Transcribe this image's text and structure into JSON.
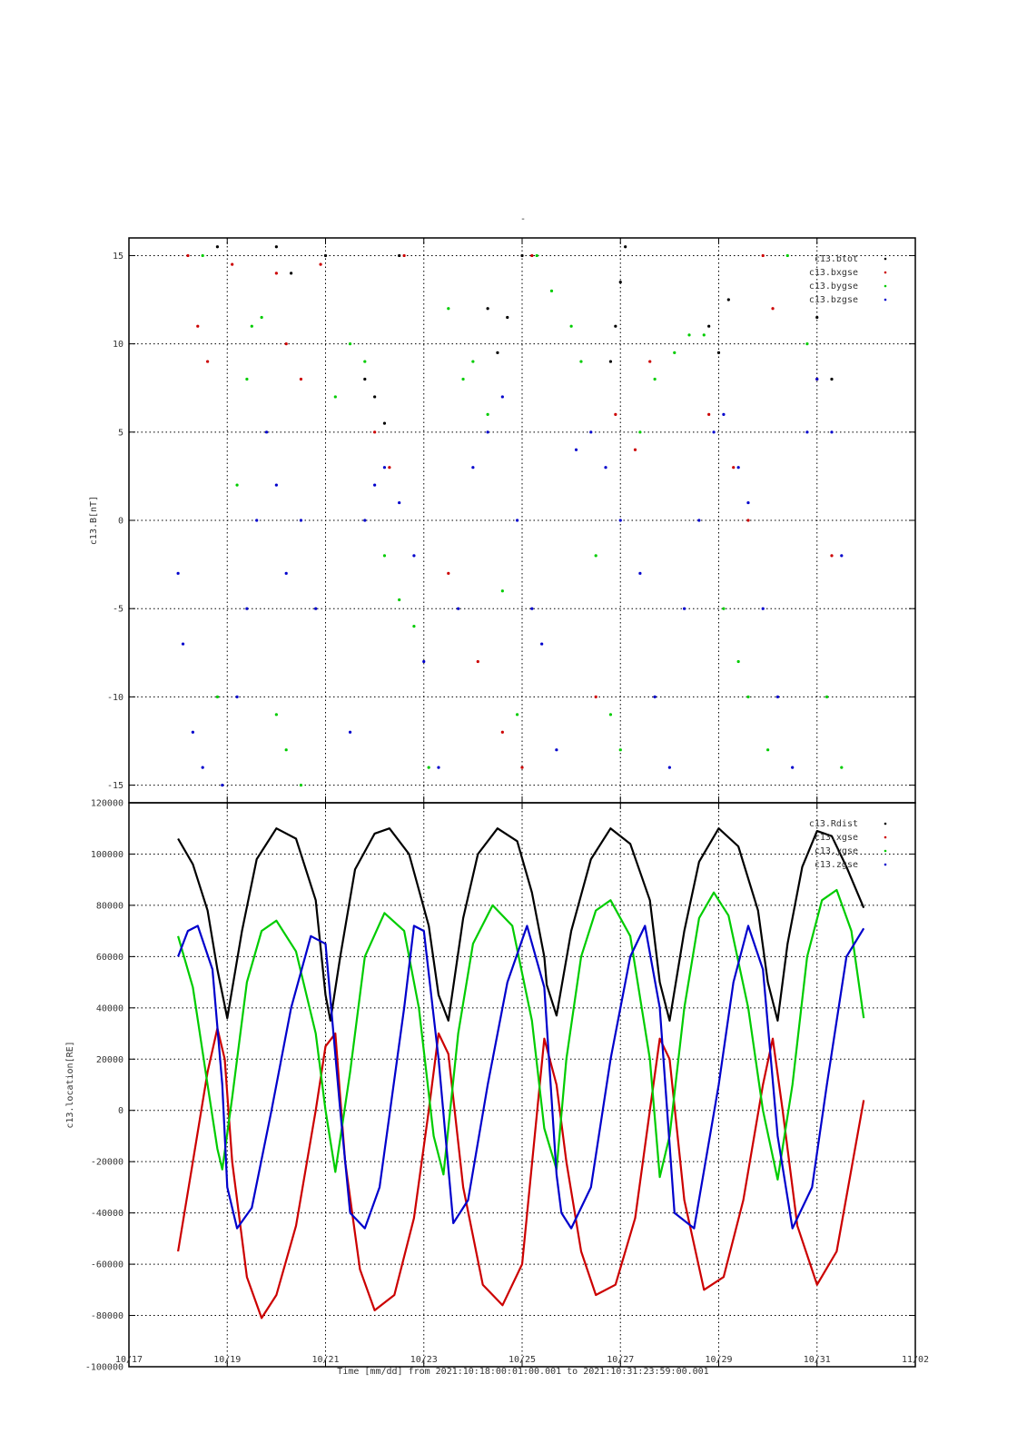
{
  "title": "-",
  "xlabel": "Time [mm/dd]  from 2021:10:18:00:01:00.001  to  2021:10:31:23:59:00.001",
  "colors": {
    "black": "#000000",
    "red": "#cc0000",
    "green": "#00cc00",
    "blue": "#0000cc"
  },
  "chart_data": [
    {
      "type": "scatter",
      "ylabel": "c13.B[nT]",
      "ylim": [
        -16,
        16
      ],
      "yticks": [
        -15,
        -10,
        -5,
        0,
        5,
        10,
        15
      ],
      "ytick_labels": [
        "-15",
        "-10",
        "-5",
        "0",
        "5",
        "10",
        "15"
      ],
      "grid": true,
      "legend_placement": "top-right",
      "legend": [
        "c13.btot",
        "c13.bxgse",
        "c13.bygse",
        "c13.bzgse"
      ],
      "series": [
        {
          "name": "c13.btot",
          "color": "#000000",
          "x": [
            18.8,
            20.0,
            20.3,
            21.0,
            21.8,
            22.0,
            22.2,
            22.5,
            24.3,
            24.5,
            24.7,
            25.0,
            26.8,
            26.9,
            27.0,
            27.1,
            28.8,
            29.0,
            29.2,
            31.0,
            31.3
          ],
          "y": [
            15.5,
            15.5,
            14.0,
            15.0,
            8.0,
            7.0,
            5.5,
            15.0,
            12.0,
            9.5,
            11.5,
            15.0,
            9.0,
            11.0,
            13.5,
            15.5,
            11.0,
            9.5,
            12.5,
            11.5,
            8.0
          ]
        },
        {
          "name": "c13.bxgse",
          "color": "#cc0000",
          "x": [
            18.2,
            18.4,
            18.6,
            19.1,
            20.0,
            20.2,
            20.5,
            20.9,
            22.0,
            22.3,
            22.6,
            23.5,
            24.1,
            24.6,
            25.0,
            25.2,
            26.5,
            26.9,
            27.3,
            27.6,
            28.8,
            29.3,
            29.6,
            29.9,
            30.1,
            31.0,
            31.3
          ],
          "y": [
            15.0,
            11.0,
            9.0,
            14.5,
            14.0,
            10.0,
            8.0,
            14.5,
            5.0,
            3.0,
            15.0,
            -3.0,
            -8.0,
            -12.0,
            -14.0,
            15.0,
            -10.0,
            6.0,
            4.0,
            9.0,
            6.0,
            3.0,
            0.0,
            15.0,
            12.0,
            8.0,
            -2.0
          ]
        },
        {
          "name": "c13.bygse",
          "color": "#00cc00",
          "x": [
            18.5,
            18.8,
            19.2,
            19.4,
            19.5,
            19.7,
            20.0,
            20.2,
            20.5,
            21.2,
            21.5,
            21.8,
            22.2,
            22.5,
            22.8,
            23.1,
            23.5,
            23.8,
            24.0,
            24.3,
            24.6,
            24.9,
            25.3,
            25.6,
            26.0,
            26.2,
            26.5,
            26.8,
            27.0,
            27.4,
            27.7,
            28.1,
            28.4,
            28.7,
            29.1,
            29.4,
            29.6,
            30.0,
            30.4,
            30.8,
            31.2,
            31.5
          ],
          "y": [
            15.0,
            -10.0,
            2.0,
            8.0,
            11.0,
            11.5,
            -11.0,
            -13.0,
            -15.0,
            7.0,
            10.0,
            9.0,
            -2.0,
            -4.5,
            -6.0,
            -14.0,
            12.0,
            8.0,
            9.0,
            6.0,
            -4.0,
            -11.0,
            15.0,
            13.0,
            11.0,
            9.0,
            -2.0,
            -11.0,
            -13.0,
            5.0,
            8.0,
            9.5,
            10.5,
            10.5,
            -5.0,
            -8.0,
            -10.0,
            -13.0,
            15.0,
            10.0,
            -10.0,
            -14.0
          ]
        },
        {
          "name": "c13.bzgse",
          "color": "#0000cc",
          "x": [
            18.0,
            18.1,
            18.3,
            18.5,
            18.9,
            19.2,
            19.4,
            19.6,
            19.8,
            20.0,
            20.2,
            20.5,
            20.8,
            21.5,
            21.8,
            22.0,
            22.2,
            22.5,
            22.8,
            23.0,
            23.3,
            23.7,
            24.0,
            24.3,
            24.6,
            24.9,
            25.2,
            25.4,
            25.7,
            26.1,
            26.4,
            26.7,
            27.0,
            27.4,
            27.7,
            28.0,
            28.3,
            28.6,
            28.9,
            29.1,
            29.4,
            29.6,
            29.9,
            30.2,
            30.5,
            30.8,
            31.0,
            31.3,
            31.5
          ],
          "y": [
            -3.0,
            -7.0,
            -12.0,
            -14.0,
            -15.0,
            -10.0,
            -5.0,
            0.0,
            5.0,
            2.0,
            -3.0,
            0.0,
            -5.0,
            -12.0,
            0.0,
            2.0,
            3.0,
            1.0,
            -2.0,
            -8.0,
            -14.0,
            -5.0,
            3.0,
            5.0,
            7.0,
            0.0,
            -5.0,
            -7.0,
            -13.0,
            4.0,
            5.0,
            3.0,
            0.0,
            -3.0,
            -10.0,
            -14.0,
            -5.0,
            0.0,
            5.0,
            6.0,
            3.0,
            1.0,
            -5.0,
            -10.0,
            -14.0,
            5.0,
            8.0,
            5.0,
            -2.0
          ]
        }
      ]
    },
    {
      "type": "line",
      "ylabel": "c13.location[RE]",
      "ylim": [
        -100000,
        120000
      ],
      "yticks": [
        -100000,
        -80000,
        -60000,
        -40000,
        -20000,
        0,
        20000,
        40000,
        60000,
        80000,
        100000,
        120000
      ],
      "ytick_labels": [
        "-100000",
        "-80000",
        "-60000",
        "-40000",
        "-20000",
        "0",
        "20000",
        "40000",
        "60000",
        "80000",
        "100000",
        "120000"
      ],
      "grid": true,
      "legend_placement": "top-right",
      "legend": [
        "c13.Rdist",
        "c13.xgse",
        "c13.ygse",
        "c13.zgse"
      ],
      "series": [
        {
          "name": "c13.Rdist",
          "color": "#000000",
          "x": [
            18.0,
            18.3,
            18.6,
            18.8,
            19.0,
            19.3,
            19.6,
            20.0,
            20.4,
            20.8,
            21.0,
            21.1,
            21.3,
            21.6,
            22.0,
            22.3,
            22.7,
            23.1,
            23.3,
            23.5,
            23.8,
            24.1,
            24.5,
            24.9,
            25.2,
            25.45,
            25.5,
            25.7,
            26.0,
            26.4,
            26.8,
            27.2,
            27.6,
            27.8,
            28.0,
            28.3,
            28.6,
            29.0,
            29.4,
            29.8,
            30.0,
            30.2,
            30.4,
            30.7,
            31.0,
            31.3,
            31.6,
            31.95
          ],
          "y": [
            106000,
            96000,
            78000,
            55000,
            36000,
            70000,
            98000,
            110000,
            106000,
            82000,
            45000,
            35000,
            60000,
            94000,
            108000,
            110000,
            100000,
            72000,
            45000,
            35000,
            75000,
            100000,
            110000,
            105000,
            85000,
            60000,
            49000,
            37000,
            70000,
            98000,
            110000,
            104000,
            82000,
            50000,
            35000,
            70000,
            97000,
            110000,
            103000,
            78000,
            50000,
            35000,
            65000,
            95000,
            109000,
            107000,
            95000,
            79000
          ]
        },
        {
          "name": "c13.xgse",
          "color": "#cc0000",
          "x": [
            18.0,
            18.3,
            18.6,
            18.8,
            18.95,
            19.1,
            19.4,
            19.7,
            20.0,
            20.4,
            20.8,
            21.0,
            21.2,
            21.4,
            21.7,
            22.0,
            22.4,
            22.8,
            23.1,
            23.3,
            23.5,
            23.8,
            24.2,
            24.6,
            25.0,
            25.45,
            25.7,
            25.9,
            26.2,
            26.5,
            26.9,
            27.3,
            27.6,
            27.8,
            28.0,
            28.3,
            28.7,
            29.1,
            29.5,
            29.9,
            30.1,
            30.3,
            30.6,
            31.0,
            31.4,
            31.95
          ],
          "y": [
            -55000,
            -20000,
            15000,
            32000,
            20000,
            -20000,
            -65000,
            -81000,
            -72000,
            -45000,
            0,
            25000,
            30000,
            -20000,
            -62000,
            -78000,
            -72000,
            -42000,
            0,
            30000,
            22000,
            -30000,
            -68000,
            -76000,
            -60000,
            28000,
            10000,
            -20000,
            -55000,
            -72000,
            -68000,
            -42000,
            0,
            28000,
            20000,
            -35000,
            -70000,
            -65000,
            -35000,
            10000,
            28000,
            0,
            -45000,
            -68000,
            -55000,
            4000
          ]
        },
        {
          "name": "c13.ygse",
          "color": "#00cc00",
          "x": [
            18.0,
            18.3,
            18.6,
            18.8,
            18.9,
            19.1,
            19.4,
            19.7,
            20.0,
            20.4,
            20.8,
            21.0,
            21.2,
            21.5,
            21.8,
            22.2,
            22.6,
            22.9,
            23.2,
            23.4,
            23.7,
            24.0,
            24.4,
            24.8,
            25.2,
            25.45,
            25.7,
            25.9,
            26.2,
            26.5,
            26.8,
            27.2,
            27.6,
            27.8,
            28.0,
            28.3,
            28.6,
            28.9,
            29.2,
            29.6,
            29.9,
            30.2,
            30.5,
            30.8,
            31.1,
            31.4,
            31.7,
            31.95
          ],
          "y": [
            68000,
            48000,
            10000,
            -15000,
            -23000,
            5000,
            50000,
            70000,
            74000,
            62000,
            30000,
            0,
            -24000,
            15000,
            60000,
            77000,
            70000,
            40000,
            -10000,
            -25000,
            30000,
            65000,
            80000,
            72000,
            35000,
            -7000,
            -23000,
            20000,
            60000,
            78000,
            82000,
            68000,
            20000,
            -26000,
            -10000,
            40000,
            75000,
            85000,
            76000,
            40000,
            0,
            -27000,
            10000,
            60000,
            82000,
            86000,
            70000,
            36000
          ]
        },
        {
          "name": "c13.zgse",
          "color": "#0000cc",
          "x": [
            18.0,
            18.2,
            18.4,
            18.7,
            18.9,
            19.0,
            19.2,
            19.5,
            19.9,
            20.3,
            20.7,
            21.0,
            21.3,
            21.5,
            21.8,
            22.1,
            22.6,
            22.8,
            23.0,
            23.3,
            23.6,
            23.9,
            24.3,
            24.7,
            25.1,
            25.45,
            25.7,
            25.8,
            26.0,
            26.4,
            26.8,
            27.2,
            27.5,
            27.8,
            28.1,
            28.5,
            29.0,
            29.3,
            29.6,
            29.9,
            30.2,
            30.5,
            30.9,
            31.2,
            31.6,
            31.95
          ],
          "y": [
            60000,
            70000,
            72000,
            55000,
            10000,
            -30000,
            -46000,
            -38000,
            0,
            40000,
            68000,
            65000,
            0,
            -40000,
            -46000,
            -30000,
            40000,
            72000,
            70000,
            20000,
            -44000,
            -35000,
            10000,
            50000,
            72000,
            48000,
            -25000,
            -40000,
            -46000,
            -30000,
            20000,
            60000,
            72000,
            40000,
            -40000,
            -46000,
            10000,
            50000,
            72000,
            55000,
            -10000,
            -46000,
            -30000,
            10000,
            60000,
            71000
          ]
        }
      ]
    }
  ],
  "xaxis": {
    "range": [
      17,
      33
    ],
    "ticks": [
      17,
      19,
      21,
      23,
      25,
      27,
      29,
      31,
      33
    ],
    "tick_labels": [
      "10/17",
      "10/19",
      "10/21",
      "10/23",
      "10/25",
      "10/27",
      "10/29",
      "10/31",
      "11/02"
    ]
  }
}
